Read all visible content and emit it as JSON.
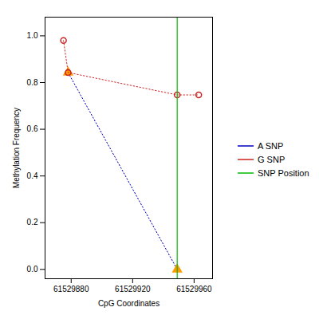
{
  "chart_data": {
    "type": "line",
    "xlabel": "CpG Coordinates",
    "ylabel": "Methylation Frequency",
    "xlim": [
      61529863,
      61529972
    ],
    "ylim": [
      -0.04,
      1.08
    ],
    "xticks": [
      61529880,
      61529920,
      61529960
    ],
    "yticks": [
      {
        "value": 0.0,
        "label": "0.0"
      },
      0.2,
      0.4,
      0.6,
      0.8,
      {
        "value": 1.0,
        "label": "1.0"
      }
    ],
    "grid": false,
    "legend": "center right",
    "series": [
      {
        "name": "A SNP",
        "type": "line",
        "color": "#0000bb",
        "line_style": "dotted",
        "marker": "triangle",
        "marker_color": "#ff9900",
        "x": [
          61529878,
          61529949
        ],
        "values": [
          0.843,
          0.0
        ]
      },
      {
        "name": "G SNP",
        "type": "line",
        "color": "#cc2222",
        "line_style": "dotted",
        "marker": "open_circle",
        "x": [
          61529875,
          61529878,
          61529949,
          61529963
        ],
        "values": [
          0.98,
          0.843,
          0.747,
          0.747
        ]
      },
      {
        "name": "SNP Position",
        "type": "rule",
        "color": "#00bb00",
        "line_style": "solid",
        "x": 61529949
      }
    ]
  }
}
